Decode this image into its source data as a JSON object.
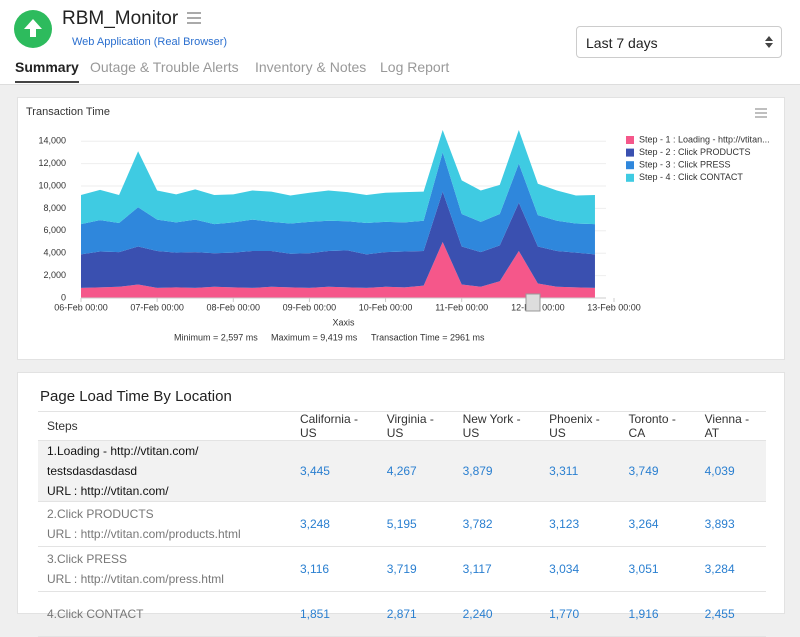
{
  "header": {
    "title": "RBM_Monitor",
    "subtitle": "Web Application (Real Browser)",
    "tabs": [
      "Summary",
      "Outage & Trouble Alerts",
      "Inventory & Notes",
      "Log Report"
    ],
    "period": "Last 7 days"
  },
  "chart_data": {
    "type": "stacked-area",
    "title": "Transaction Time",
    "x_label": "Xaxis",
    "x": [
      "06-Feb 00:00",
      "06-Feb 06:00",
      "06-Feb 12:00",
      "06-Feb 18:00",
      "07-Feb 00:00",
      "07-Feb 06:00",
      "07-Feb 12:00",
      "07-Feb 18:00",
      "08-Feb 00:00",
      "08-Feb 06:00",
      "08-Feb 12:00",
      "08-Feb 18:00",
      "09-Feb 00:00",
      "09-Feb 06:00",
      "09-Feb 12:00",
      "09-Feb 18:00",
      "10-Feb 00:00",
      "10-Feb 06:00",
      "10-Feb 12:00",
      "10-Feb 18:00",
      "11-Feb 00:00",
      "11-Feb 06:00",
      "11-Feb 12:00",
      "11-Feb 18:00",
      "12-Feb 00:00",
      "12-Feb 06:00",
      "12-Feb 12:00",
      "12-Feb 18:00"
    ],
    "xlim": [
      "06-Feb 00:00",
      "13-Feb 00:00"
    ],
    "xticks": [
      "06-Feb 00:00",
      "07-Feb 00:00",
      "08-Feb 00:00",
      "09-Feb 00:00",
      "10-Feb 00:00",
      "11-Feb 00:00",
      "12-Feb 00:00",
      "13-Feb 00:00"
    ],
    "ylim": [
      0,
      15000
    ],
    "yticks": [
      0,
      {
        "value": 2000,
        "label": "2,000"
      },
      {
        "value": 4000,
        "label": "4,000"
      },
      {
        "value": 6000,
        "label": "6,000"
      },
      {
        "value": 8000,
        "label": "8,000"
      },
      {
        "value": 10000,
        "label": "10,000"
      },
      {
        "value": 12000,
        "label": "12,000"
      },
      {
        "value": 14000,
        "label": "14,000"
      }
    ],
    "grid": true,
    "legend": "right",
    "series": [
      {
        "name": "Step - 1 : Loading - http://vtitan...",
        "color": "#f5578a",
        "values": [
          900,
          950,
          1000,
          1200,
          900,
          950,
          900,
          1000,
          950,
          900,
          1000,
          950,
          900,
          1000,
          950,
          900,
          1000,
          950,
          1100,
          5000,
          1200,
          1000,
          1500,
          4200,
          1300,
          1000,
          950,
          900
        ]
      },
      {
        "name": "Step - 2 : Click PRODUCTS",
        "color": "#3a50b0",
        "values": [
          3000,
          3200,
          3100,
          3400,
          3300,
          3100,
          3200,
          3000,
          3100,
          3300,
          3200,
          3000,
          3100,
          3200,
          3300,
          3000,
          3100,
          3200,
          3100,
          4500,
          3400,
          3100,
          3200,
          4300,
          3300,
          3200,
          3100,
          3000
        ]
      },
      {
        "name": "Step - 3 : Click PRESS",
        "color": "#2f87dc",
        "values": [
          2700,
          2800,
          2600,
          3500,
          2800,
          2700,
          2900,
          2600,
          2700,
          2800,
          2600,
          2700,
          2800,
          2700,
          2600,
          2800,
          2700,
          2600,
          2700,
          3500,
          2900,
          2700,
          2800,
          3500,
          2800,
          2700,
          2600,
          2700
        ]
      },
      {
        "name": "Step - 4 : Click CONTACT",
        "color": "#3fcbe2",
        "values": [
          2600,
          2700,
          2500,
          5000,
          2600,
          2500,
          2700,
          2600,
          2500,
          2600,
          2700,
          2500,
          2600,
          2700,
          2600,
          2500,
          2600,
          2700,
          2600,
          2000,
          3000,
          2800,
          2600,
          3000,
          2800,
          2700,
          2500,
          2600
        ]
      }
    ],
    "annotations": [
      "Minimum = 2,597 ms",
      "Maximum = 9,419 ms",
      "Transaction Time = 2961 ms"
    ]
  },
  "table": {
    "title": "Page Load Time By Location",
    "columns": [
      "Steps",
      "California - US",
      "Virginia - US",
      "New York - US",
      "Phoenix - US",
      "Toronto - CA",
      "Vienna - AT"
    ],
    "rows": [
      {
        "step": "1.Loading - http://vtitan.com/ testsdasdasdasd",
        "url": "URL : http://vtitan.com/",
        "values": [
          "3,445",
          "4,267",
          "3,879",
          "3,311",
          "3,749",
          "4,039"
        ]
      },
      {
        "step": "2.Click PRODUCTS",
        "url": "URL : http://vtitan.com/products.html",
        "values": [
          "3,248",
          "5,195",
          "3,782",
          "3,123",
          "3,264",
          "3,893"
        ]
      },
      {
        "step": "3.Click PRESS",
        "url": "URL : http://vtitan.com/press.html",
        "values": [
          "3,116",
          "3,719",
          "3,117",
          "3,034",
          "3,051",
          "3,284"
        ]
      },
      {
        "step": "4.Click CONTACT",
        "values": [
          "1,851",
          "2,871",
          "2,240",
          "1,770",
          "1,916",
          "2,455"
        ]
      }
    ]
  }
}
